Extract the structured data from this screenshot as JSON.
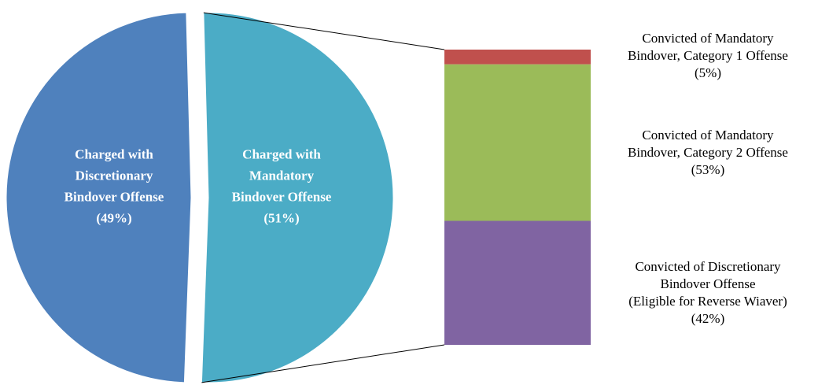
{
  "chart_data": {
    "type": "pie",
    "pie": {
      "slices": [
        {
          "label_lines": [
            "Charged with",
            "Discretionary",
            "Bindover Offense",
            "(49%)"
          ],
          "value": 49,
          "color": "#4f81bd"
        },
        {
          "label_lines": [
            "Charged with",
            "Mandatory",
            "Bindover Offense",
            "(51%)"
          ],
          "value": 51,
          "color": "#4bacc6"
        }
      ]
    },
    "breakdown": {
      "of_slice": 1,
      "type": "stacked-bar",
      "segments": [
        {
          "label_lines": [
            "Convicted of Mandatory",
            "Bindover, Category 1 Offense",
            "(5%)"
          ],
          "value": 5,
          "color": "#c0504d"
        },
        {
          "label_lines": [
            "Convicted of Mandatory",
            "Bindover, Category 2 Offense",
            "(53%)"
          ],
          "value": 53,
          "color": "#9bbb59"
        },
        {
          "label_lines": [
            "Convicted of Discretionary",
            "Bindover Offense",
            "(Eligible for Reverse Wiaver)",
            "(42%)"
          ],
          "value": 42,
          "color": "#8064a2"
        }
      ]
    },
    "legend": "none",
    "grid": false
  }
}
